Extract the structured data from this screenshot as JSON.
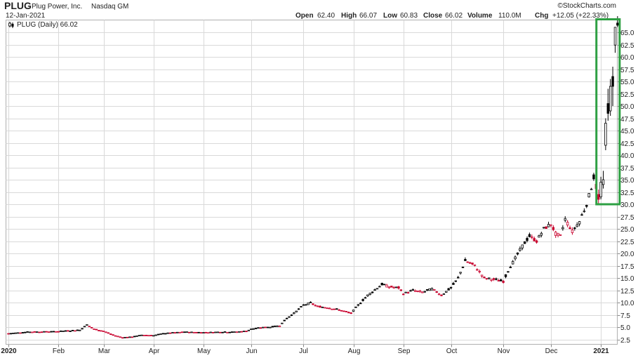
{
  "header": {
    "ticker": "PLUG",
    "company": "Plug Power, Inc.",
    "exchange": "Nasdaq GM",
    "date": "12-Jan-2021",
    "watermark": "©StockCharts.com"
  },
  "quote": {
    "open_label": "Open",
    "open": "62.40",
    "high_label": "High",
    "high": "66.07",
    "low_label": "Low",
    "low": "60.83",
    "close_label": "Close",
    "close": "66.02",
    "volume_label": "Volume",
    "volume": "110.0M",
    "chg_label": "Chg",
    "chg": "+12.05 (+22.33%)"
  },
  "legend": {
    "label": "PLUG (Daily) 66.02"
  },
  "colors": {
    "up": "#000000",
    "down": "#c8002c",
    "highlight": "#2ea043",
    "grid": "#d9d9d9",
    "border": "#b0b0b0"
  },
  "chart_data": {
    "type": "candlestick",
    "title": "PLUG (Daily)",
    "ylim": [
      1.5,
      67.5
    ],
    "yticks": [
      2.5,
      5.0,
      7.5,
      10.0,
      12.5,
      15.0,
      17.5,
      20.0,
      22.5,
      25.0,
      27.5,
      30.0,
      32.5,
      35.0,
      37.5,
      40.0,
      42.5,
      45.0,
      47.5,
      50.0,
      52.5,
      55.0,
      57.5,
      60.0,
      62.5,
      65.0
    ],
    "x_labels": [
      {
        "label": "2020",
        "index": 0
      },
      {
        "label": "Feb",
        "index": 21
      },
      {
        "label": "Mar",
        "index": 40
      },
      {
        "label": "Apr",
        "index": 61
      },
      {
        "label": "May",
        "index": 82
      },
      {
        "label": "Jun",
        "index": 102
      },
      {
        "label": "Jul",
        "index": 124
      },
      {
        "label": "Aug",
        "index": 145
      },
      {
        "label": "Sep",
        "index": 166
      },
      {
        "label": "Oct",
        "index": 186
      },
      {
        "label": "Nov",
        "index": 208
      },
      {
        "label": "Dec",
        "index": 228
      },
      {
        "label": "2021",
        "index": 249
      }
    ],
    "highlight_box": {
      "from_index": 248,
      "to_index": 256,
      "low": 30.0,
      "high": 67.5
    },
    "keypoints": [
      [
        0,
        3.7
      ],
      [
        8,
        4.0
      ],
      [
        20,
        4.1
      ],
      [
        30,
        4.4
      ],
      [
        33,
        5.5
      ],
      [
        36,
        4.6
      ],
      [
        40,
        4.2
      ],
      [
        44,
        3.4
      ],
      [
        48,
        2.9
      ],
      [
        52,
        3.0
      ],
      [
        56,
        3.4
      ],
      [
        61,
        3.3
      ],
      [
        65,
        3.7
      ],
      [
        70,
        3.9
      ],
      [
        75,
        4.0
      ],
      [
        82,
        3.9
      ],
      [
        88,
        4.0
      ],
      [
        95,
        4.0
      ],
      [
        100,
        4.2
      ],
      [
        102,
        4.6
      ],
      [
        106,
        4.9
      ],
      [
        110,
        5.0
      ],
      [
        114,
        5.3
      ],
      [
        117,
        6.8
      ],
      [
        120,
        7.8
      ],
      [
        124,
        9.5
      ],
      [
        127,
        9.9
      ],
      [
        130,
        9.2
      ],
      [
        134,
        9.0
      ],
      [
        140,
        8.4
      ],
      [
        144,
        7.8
      ],
      [
        147,
        9.5
      ],
      [
        151,
        11.5
      ],
      [
        154,
        12.6
      ],
      [
        157,
        13.7
      ],
      [
        160,
        13.2
      ],
      [
        164,
        13.0
      ],
      [
        166,
        11.8
      ],
      [
        170,
        12.5
      ],
      [
        174,
        12.1
      ],
      [
        178,
        12.8
      ],
      [
        182,
        11.5
      ],
      [
        186,
        13.0
      ],
      [
        189,
        15.0
      ],
      [
        192,
        18.5
      ],
      [
        196,
        17.5
      ],
      [
        200,
        15.0
      ],
      [
        204,
        14.7
      ],
      [
        208,
        14.3
      ],
      [
        210,
        16.5
      ],
      [
        213,
        19.0
      ],
      [
        216,
        21.5
      ],
      [
        219,
        23.5
      ],
      [
        222,
        22.5
      ],
      [
        225,
        25.0
      ],
      [
        228,
        26.0
      ],
      [
        230,
        24.0
      ],
      [
        232,
        23.5
      ],
      [
        234,
        27.0
      ],
      [
        237,
        24.5
      ],
      [
        240,
        26.5
      ],
      [
        243,
        30.0
      ],
      [
        245,
        33.5
      ],
      [
        246,
        35.5
      ],
      [
        247,
        33.5
      ],
      [
        248,
        31.0
      ],
      [
        249,
        32.5
      ],
      [
        250,
        35.0
      ],
      [
        251,
        34.0
      ],
      [
        252,
        43.0
      ],
      [
        253,
        50.0
      ],
      [
        254,
        53.0
      ],
      [
        255,
        61.0
      ],
      [
        256,
        66.02
      ]
    ],
    "last_candles": [
      {
        "index": 248,
        "open": 32.0,
        "high": 33.0,
        "low": 30.1,
        "close": 31.0
      },
      {
        "index": 249,
        "open": 31.5,
        "high": 35.6,
        "low": 31.0,
        "close": 34.5
      },
      {
        "index": 250,
        "open": 34.0,
        "high": 36.8,
        "low": 33.2,
        "close": 35.0
      },
      {
        "index": 251,
        "open": 42.0,
        "high": 47.5,
        "low": 41.0,
        "close": 46.5
      },
      {
        "index": 252,
        "open": 50.5,
        "high": 53.5,
        "low": 47.0,
        "close": 48.5
      },
      {
        "index": 253,
        "open": 49.0,
        "high": 55.5,
        "low": 48.0,
        "close": 54.0
      },
      {
        "index": 254,
        "open": 56.0,
        "high": 58.0,
        "low": 50.0,
        "close": 54.0
      },
      {
        "index": 255,
        "open": 62.4,
        "high": 66.07,
        "low": 60.83,
        "close": 66.02
      }
    ]
  }
}
